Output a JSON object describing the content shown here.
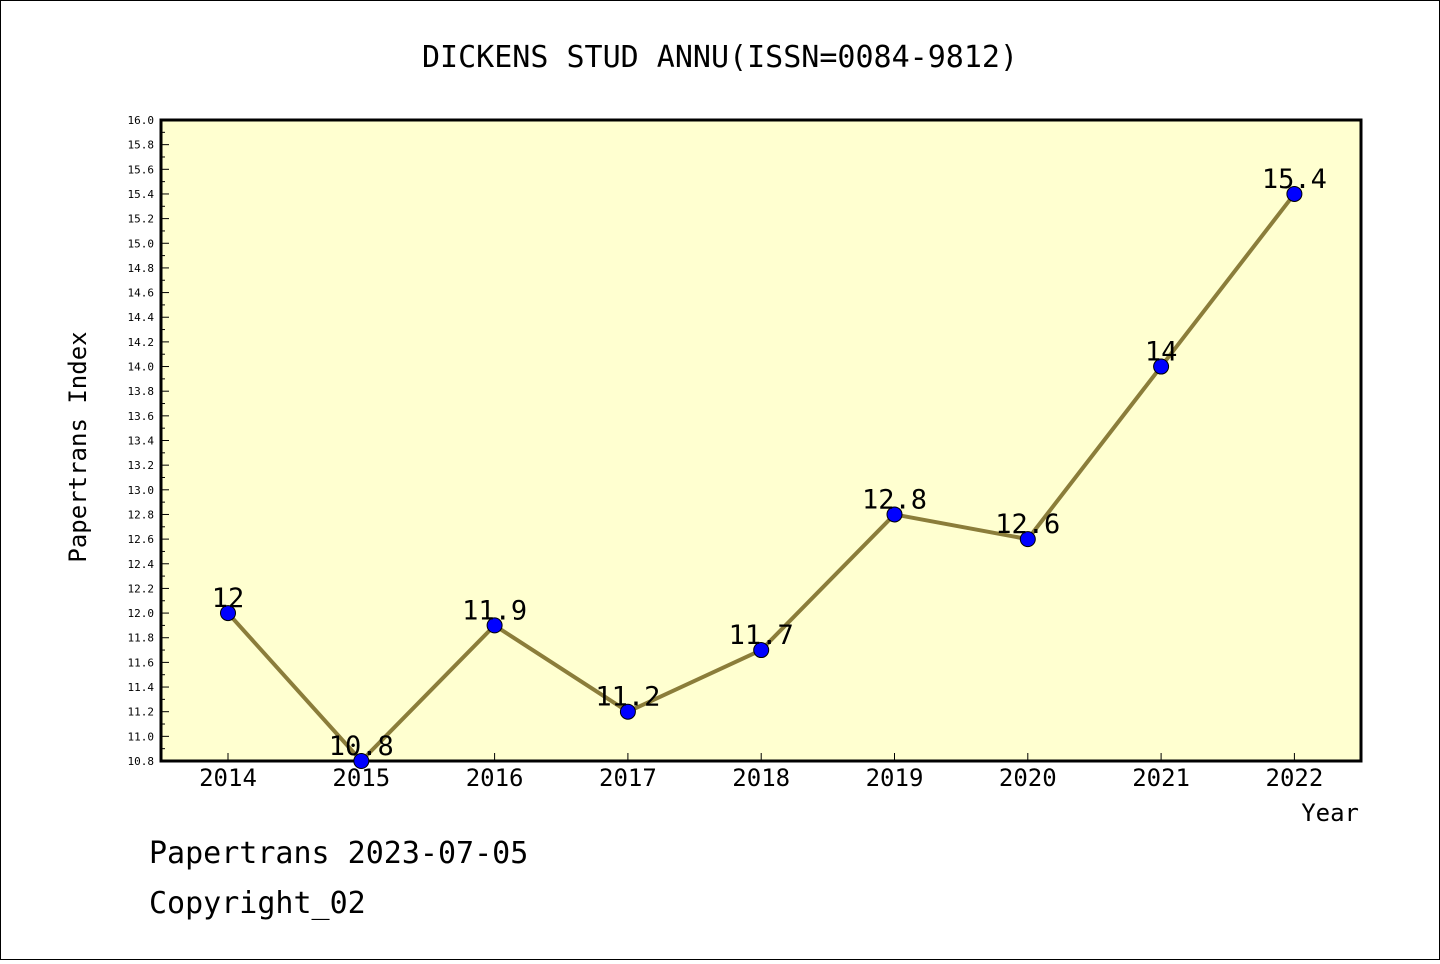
{
  "chart_data": {
    "type": "line",
    "title": "DICKENS STUD ANNU(ISSN=0084-9812)",
    "xlabel": "Year",
    "ylabel": "Papertrans Index",
    "categories": [
      "2014",
      "2015",
      "2016",
      "2017",
      "2018",
      "2019",
      "2020",
      "2021",
      "2022"
    ],
    "series": [
      {
        "values": [
          12,
          10.8,
          11.9,
          11.2,
          11.7,
          12.8,
          12.6,
          14,
          15.4
        ]
      }
    ],
    "data_labels": [
      "12",
      "10.8",
      "11.9",
      "11.2",
      "11.7",
      "12.8",
      "12.6",
      "14",
      "15.4"
    ],
    "ylim": [
      10.8,
      16.0
    ],
    "ytick_step": 0.2,
    "grid": false,
    "colors": {
      "plot_background": "#ffffd0",
      "line": "#8b7d3a",
      "marker": "#0000ff"
    }
  },
  "footer": {
    "date_line": "Papertrans 2023-07-05",
    "copyright": "Copyright_02"
  }
}
